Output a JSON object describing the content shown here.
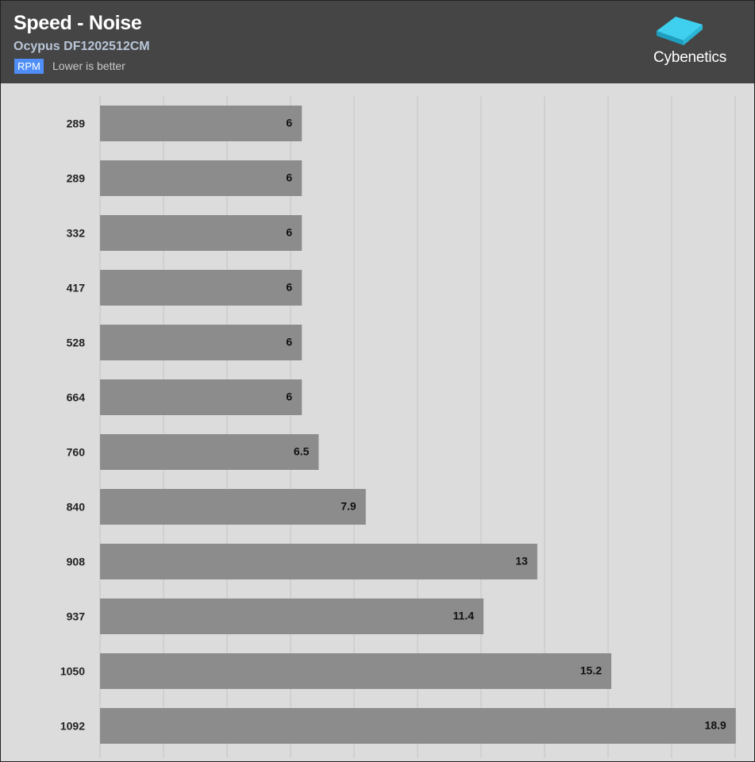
{
  "header": {
    "title": "Speed - Noise",
    "subtitle": "Ocypus DF1202512CM",
    "unit_badge": "RPM",
    "note": "Lower is better",
    "logo_text": "Cybenetics"
  },
  "colors": {
    "header_bg": "#454545",
    "plot_bg": "#dcdcdc",
    "bar": "#8c8c8c",
    "badge": "#4f8ef7",
    "logo_accent": "#3fd0f0"
  },
  "chart_data": {
    "type": "bar",
    "orientation": "horizontal",
    "categories": [
      "289",
      "289",
      "332",
      "417",
      "528",
      "664",
      "760",
      "840",
      "908",
      "937",
      "1050",
      "1092"
    ],
    "values": [
      6,
      6,
      6,
      6,
      6,
      6,
      6.5,
      7.9,
      13,
      11.4,
      15.2,
      18.9
    ],
    "value_labels": [
      "6",
      "6",
      "6",
      "6",
      "6",
      "6",
      "6.5",
      "7.9",
      "13",
      "11.4",
      "15.2",
      "18.9"
    ],
    "xlim": [
      0,
      19
    ],
    "grid": true,
    "data_labels": true
  }
}
